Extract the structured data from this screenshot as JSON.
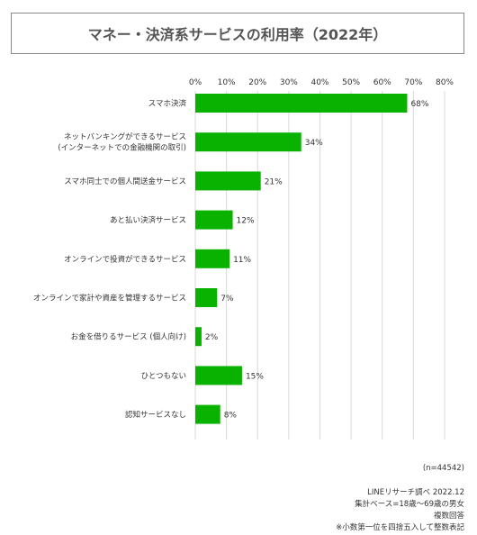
{
  "chart_data": {
    "type": "bar",
    "orientation": "horizontal",
    "title": "マネー・決済系サービスの利用率（2022年）",
    "categories": [
      [
        "スマホ決済"
      ],
      [
        "ネットバンキングができるサービス",
        "(インターネットでの金融機関の取引)"
      ],
      [
        "スマホ同士での個人間送金サービス"
      ],
      [
        "あと払い決済サービス"
      ],
      [
        "オンラインで投資ができるサービス"
      ],
      [
        "オンラインで家計や資産を管理するサービス"
      ],
      [
        "お金を借りるサービス (個人向け)"
      ],
      [
        "ひとつもない"
      ],
      [
        "認知サービスなし"
      ]
    ],
    "values": [
      68,
      34,
      21,
      12,
      11,
      7,
      2,
      15,
      8
    ],
    "value_suffix": "%",
    "xlim": [
      0,
      80
    ],
    "xticks": [
      0,
      10,
      20,
      30,
      40,
      50,
      60,
      70,
      80
    ],
    "tick_suffix": "%",
    "grid": true,
    "bar_color": "#0ab200"
  },
  "footer": {
    "n": "(n=44542)",
    "source": "LINEリサーチ調べ 2022.12",
    "base": "集計ベース=18歳～69歳の男女",
    "multi": "複数回答",
    "note": "※小数第一位を四捨五入して整数表記"
  }
}
